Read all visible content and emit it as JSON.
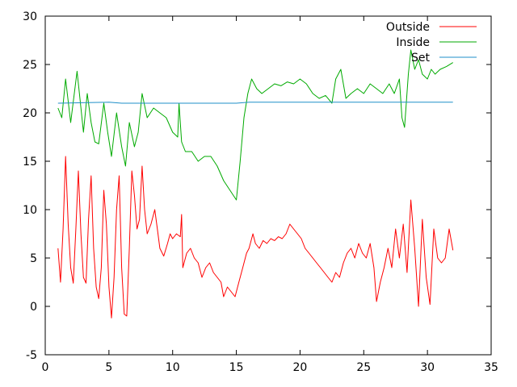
{
  "chart_data": {
    "type": "line",
    "title": "",
    "xlabel": "",
    "ylabel": "",
    "xlim": [
      0,
      35
    ],
    "ylim": [
      -5,
      30
    ],
    "x_ticks": [
      0,
      5,
      10,
      15,
      20,
      25,
      30,
      35
    ],
    "y_ticks": [
      -5,
      0,
      5,
      10,
      15,
      20,
      25,
      30
    ],
    "grid": false,
    "legend_position": "top-right",
    "series": [
      {
        "name": "Outside",
        "color": "#ff0000",
        "points": [
          [
            1.0,
            6.0
          ],
          [
            1.2,
            2.5
          ],
          [
            1.4,
            8.0
          ],
          [
            1.6,
            15.5
          ],
          [
            1.8,
            8.5
          ],
          [
            2.0,
            4.0
          ],
          [
            2.2,
            2.4
          ],
          [
            2.4,
            8.0
          ],
          [
            2.6,
            14.0
          ],
          [
            2.8,
            7.5
          ],
          [
            3.0,
            3.0
          ],
          [
            3.2,
            2.4
          ],
          [
            3.4,
            9.0
          ],
          [
            3.6,
            13.5
          ],
          [
            3.8,
            6.0
          ],
          [
            4.0,
            2.0
          ],
          [
            4.2,
            0.8
          ],
          [
            4.4,
            4.0
          ],
          [
            4.6,
            12.0
          ],
          [
            4.8,
            8.5
          ],
          [
            5.0,
            2.0
          ],
          [
            5.2,
            -1.2
          ],
          [
            5.4,
            3.0
          ],
          [
            5.6,
            10.0
          ],
          [
            5.8,
            13.5
          ],
          [
            6.0,
            4.0
          ],
          [
            6.2,
            -0.8
          ],
          [
            6.4,
            -1.0
          ],
          [
            6.6,
            6.0
          ],
          [
            6.8,
            14.0
          ],
          [
            7.0,
            11.5
          ],
          [
            7.2,
            8.0
          ],
          [
            7.4,
            9.0
          ],
          [
            7.6,
            14.5
          ],
          [
            7.8,
            10.0
          ],
          [
            8.0,
            7.5
          ],
          [
            8.3,
            8.5
          ],
          [
            8.6,
            10.0
          ],
          [
            8.8,
            8.0
          ],
          [
            9.0,
            6.0
          ],
          [
            9.3,
            5.2
          ],
          [
            9.6,
            6.5
          ],
          [
            9.8,
            7.5
          ],
          [
            10.0,
            7.0
          ],
          [
            10.3,
            7.5
          ],
          [
            10.6,
            7.2
          ],
          [
            10.7,
            9.5
          ],
          [
            10.8,
            4.0
          ],
          [
            11.1,
            5.5
          ],
          [
            11.4,
            6.0
          ],
          [
            11.7,
            5.0
          ],
          [
            12.0,
            4.5
          ],
          [
            12.3,
            3.0
          ],
          [
            12.6,
            4.0
          ],
          [
            12.9,
            4.5
          ],
          [
            13.2,
            3.5
          ],
          [
            13.5,
            3.0
          ],
          [
            13.8,
            2.5
          ],
          [
            14.0,
            1.0
          ],
          [
            14.3,
            2.0
          ],
          [
            14.6,
            1.5
          ],
          [
            14.9,
            1.0
          ],
          [
            15.2,
            2.5
          ],
          [
            15.5,
            4.0
          ],
          [
            15.8,
            5.5
          ],
          [
            16.0,
            6.0
          ],
          [
            16.3,
            7.5
          ],
          [
            16.5,
            6.5
          ],
          [
            16.8,
            6.0
          ],
          [
            17.1,
            6.8
          ],
          [
            17.4,
            6.5
          ],
          [
            17.7,
            7.0
          ],
          [
            18.0,
            6.8
          ],
          [
            18.3,
            7.2
          ],
          [
            18.6,
            7.0
          ],
          [
            18.9,
            7.5
          ],
          [
            19.2,
            8.5
          ],
          [
            19.5,
            8.0
          ],
          [
            19.8,
            7.5
          ],
          [
            20.1,
            7.0
          ],
          [
            20.4,
            6.0
          ],
          [
            20.7,
            5.5
          ],
          [
            21.0,
            5.0
          ],
          [
            21.3,
            4.5
          ],
          [
            21.6,
            4.0
          ],
          [
            21.9,
            3.5
          ],
          [
            22.2,
            3.0
          ],
          [
            22.5,
            2.5
          ],
          [
            22.8,
            3.5
          ],
          [
            23.1,
            3.0
          ],
          [
            23.4,
            4.5
          ],
          [
            23.7,
            5.5
          ],
          [
            24.0,
            6.0
          ],
          [
            24.3,
            5.0
          ],
          [
            24.6,
            6.5
          ],
          [
            24.9,
            5.5
          ],
          [
            25.2,
            5.0
          ],
          [
            25.5,
            6.5
          ],
          [
            25.8,
            4.0
          ],
          [
            26.0,
            0.5
          ],
          [
            26.3,
            2.5
          ],
          [
            26.6,
            4.0
          ],
          [
            26.9,
            6.0
          ],
          [
            27.2,
            4.0
          ],
          [
            27.5,
            8.0
          ],
          [
            27.8,
            5.0
          ],
          [
            28.1,
            8.5
          ],
          [
            28.4,
            3.5
          ],
          [
            28.7,
            11.0
          ],
          [
            29.0,
            6.0
          ],
          [
            29.3,
            0.0
          ],
          [
            29.6,
            9.0
          ],
          [
            29.9,
            3.0
          ],
          [
            30.2,
            0.2
          ],
          [
            30.5,
            8.0
          ],
          [
            30.8,
            5.0
          ],
          [
            31.1,
            4.5
          ],
          [
            31.4,
            5.0
          ],
          [
            31.7,
            8.0
          ],
          [
            32.0,
            5.8
          ]
        ]
      },
      {
        "name": "Inside",
        "color": "#00aa00",
        "points": [
          [
            1.0,
            20.5
          ],
          [
            1.3,
            19.5
          ],
          [
            1.6,
            23.5
          ],
          [
            2.0,
            19.0
          ],
          [
            2.5,
            24.3
          ],
          [
            2.8,
            20.5
          ],
          [
            3.0,
            18.0
          ],
          [
            3.3,
            22.0
          ],
          [
            3.6,
            19.0
          ],
          [
            3.9,
            17.0
          ],
          [
            4.2,
            16.8
          ],
          [
            4.6,
            21.0
          ],
          [
            4.9,
            18.0
          ],
          [
            5.2,
            15.5
          ],
          [
            5.6,
            20.0
          ],
          [
            6.0,
            16.5
          ],
          [
            6.3,
            14.5
          ],
          [
            6.6,
            19.0
          ],
          [
            7.0,
            16.5
          ],
          [
            7.3,
            18.0
          ],
          [
            7.6,
            22.0
          ],
          [
            8.0,
            19.5
          ],
          [
            8.5,
            20.5
          ],
          [
            9.0,
            20.0
          ],
          [
            9.5,
            19.5
          ],
          [
            10.0,
            18.0
          ],
          [
            10.4,
            17.5
          ],
          [
            10.5,
            21.0
          ],
          [
            10.7,
            17.0
          ],
          [
            11.0,
            16.0
          ],
          [
            11.5,
            16.0
          ],
          [
            12.0,
            15.0
          ],
          [
            12.5,
            15.5
          ],
          [
            13.0,
            15.5
          ],
          [
            13.5,
            14.5
          ],
          [
            14.0,
            13.0
          ],
          [
            14.5,
            12.0
          ],
          [
            15.0,
            11.0
          ],
          [
            15.3,
            15.0
          ],
          [
            15.6,
            19.5
          ],
          [
            15.9,
            22.0
          ],
          [
            16.2,
            23.5
          ],
          [
            16.6,
            22.5
          ],
          [
            17.0,
            22.0
          ],
          [
            17.5,
            22.5
          ],
          [
            18.0,
            23.0
          ],
          [
            18.5,
            22.8
          ],
          [
            19.0,
            23.2
          ],
          [
            19.5,
            23.0
          ],
          [
            20.0,
            23.5
          ],
          [
            20.5,
            23.0
          ],
          [
            21.0,
            22.0
          ],
          [
            21.5,
            21.5
          ],
          [
            22.0,
            21.8
          ],
          [
            22.5,
            21.0
          ],
          [
            22.8,
            23.5
          ],
          [
            23.2,
            24.5
          ],
          [
            23.6,
            21.5
          ],
          [
            24.0,
            22.0
          ],
          [
            24.5,
            22.5
          ],
          [
            25.0,
            22.0
          ],
          [
            25.5,
            23.0
          ],
          [
            26.0,
            22.5
          ],
          [
            26.5,
            22.0
          ],
          [
            27.0,
            23.0
          ],
          [
            27.4,
            22.0
          ],
          [
            27.8,
            23.5
          ],
          [
            28.0,
            19.5
          ],
          [
            28.2,
            18.5
          ],
          [
            28.5,
            24.0
          ],
          [
            28.7,
            26.5
          ],
          [
            29.0,
            24.5
          ],
          [
            29.3,
            25.5
          ],
          [
            29.6,
            24.0
          ],
          [
            30.0,
            23.5
          ],
          [
            30.3,
            24.5
          ],
          [
            30.6,
            24.0
          ],
          [
            31.0,
            24.5
          ],
          [
            31.5,
            24.8
          ],
          [
            32.0,
            25.2
          ]
        ]
      },
      {
        "name": "Set",
        "color": "#1f8fc8",
        "points": [
          [
            1.0,
            21.0
          ],
          [
            5.0,
            21.1
          ],
          [
            6.0,
            21.0
          ],
          [
            9.0,
            21.0
          ],
          [
            12.0,
            21.0
          ],
          [
            15.0,
            21.0
          ],
          [
            16.0,
            21.1
          ],
          [
            20.0,
            21.1
          ],
          [
            25.0,
            21.1
          ],
          [
            28.0,
            21.1
          ],
          [
            32.0,
            21.1
          ]
        ]
      }
    ]
  }
}
